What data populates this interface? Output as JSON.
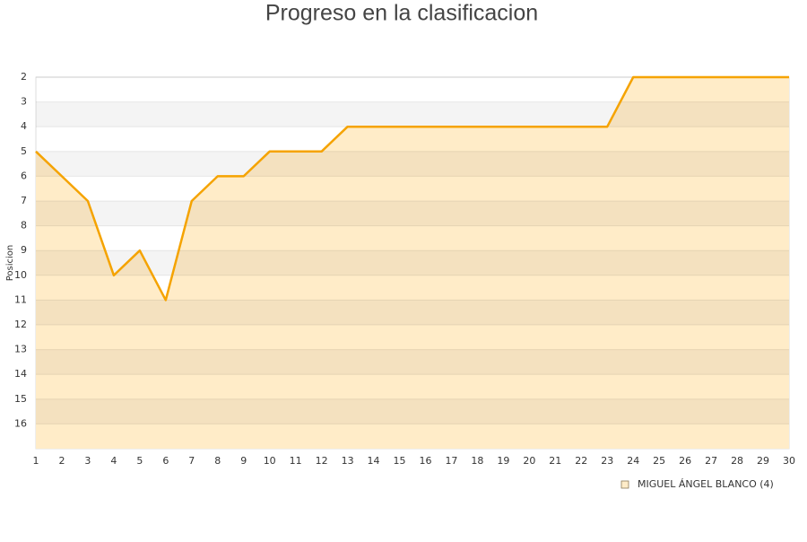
{
  "chart_data": {
    "type": "line",
    "title": "Progreso en la clasificacion",
    "y_label": "Posicion",
    "x": [
      1,
      2,
      3,
      4,
      5,
      6,
      7,
      8,
      9,
      10,
      11,
      12,
      13,
      14,
      15,
      16,
      17,
      18,
      19,
      20,
      21,
      22,
      23,
      24,
      25,
      26,
      27,
      28,
      29,
      30
    ],
    "series": [
      {
        "name": "MIGUEL ÁNGEL BLANCO (4)",
        "color": "#f5a300",
        "values": [
          5,
          6,
          7,
          10,
          9,
          11,
          7,
          6,
          6,
          5,
          5,
          5,
          4,
          4,
          4,
          4,
          4,
          4,
          4,
          4,
          4,
          4,
          4,
          2,
          2,
          2,
          2,
          2,
          2,
          2
        ]
      }
    ],
    "xlim": [
      1,
      30
    ],
    "xticks": [
      1,
      2,
      3,
      4,
      5,
      6,
      7,
      8,
      9,
      10,
      11,
      12,
      13,
      14,
      15,
      16,
      17,
      18,
      19,
      20,
      21,
      22,
      23,
      24,
      25,
      26,
      27,
      28,
      29,
      30
    ],
    "ylim": [
      2,
      17
    ],
    "y_inverted": true,
    "yticks": [
      2,
      3,
      4,
      5,
      6,
      7,
      8,
      9,
      10,
      11,
      12,
      13,
      14,
      15,
      16
    ],
    "grid": true,
    "area_fill": "#ffecc8",
    "legend": "bottom-right"
  }
}
